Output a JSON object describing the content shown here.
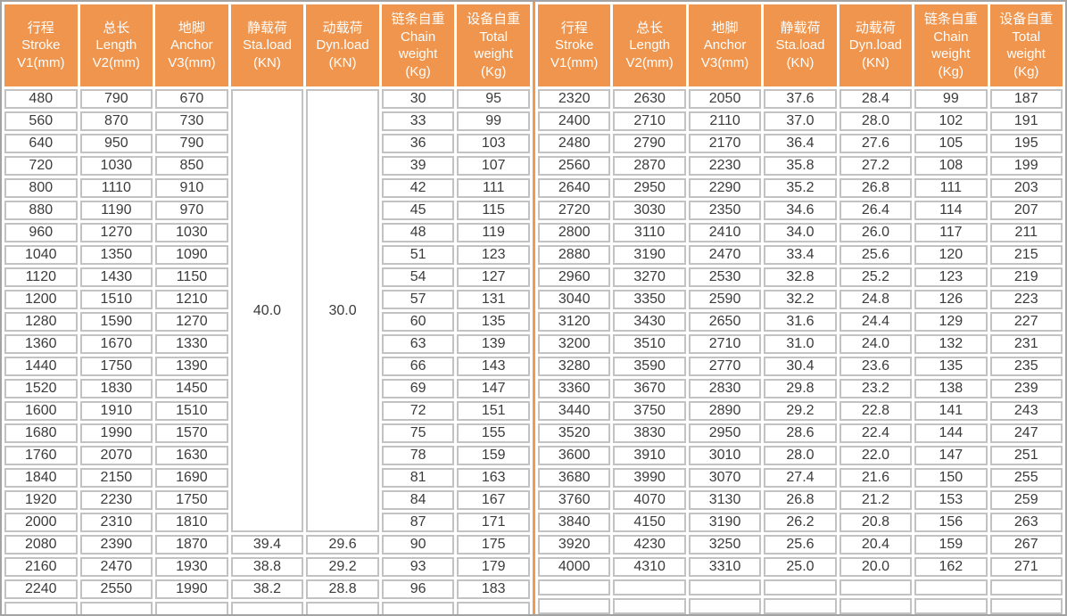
{
  "colors": {
    "header_bg": "#EF954D",
    "divider": "#EF9A4C",
    "cell_border": "#C2C2C2",
    "outer_border": "#A3A3A3",
    "data_text": "#3B3B3B",
    "header_text": "#FFFFFF"
  },
  "header_columns": [
    {
      "lines": [
        "行程",
        "Stroke",
        "V1(mm)"
      ]
    },
    {
      "lines": [
        "总长",
        "Length",
        "V2(mm)"
      ]
    },
    {
      "lines": [
        "地脚",
        "Anchor",
        "V3(mm)"
      ]
    },
    {
      "lines": [
        "静载荷",
        "Sta.load",
        "(KN)"
      ]
    },
    {
      "lines": [
        "动载荷",
        "Dyn.load",
        "(KN)"
      ]
    },
    {
      "lines": [
        "链条自重",
        "Chain",
        "weight",
        "(Kg)"
      ]
    },
    {
      "lines": [
        "设备自重",
        "Total",
        "weight",
        "(Kg)"
      ]
    }
  ],
  "left_table": {
    "merged": {
      "columns": [
        3,
        4
      ],
      "values": [
        "40.0",
        "30.0"
      ],
      "span": 20
    },
    "rows": [
      [
        "480",
        "790",
        "670",
        null,
        null,
        "30",
        "95"
      ],
      [
        "560",
        "870",
        "730",
        null,
        null,
        "33",
        "99"
      ],
      [
        "640",
        "950",
        "790",
        null,
        null,
        "36",
        "103"
      ],
      [
        "720",
        "1030",
        "850",
        null,
        null,
        "39",
        "107"
      ],
      [
        "800",
        "1110",
        "910",
        null,
        null,
        "42",
        "111"
      ],
      [
        "880",
        "1190",
        "970",
        null,
        null,
        "45",
        "115"
      ],
      [
        "960",
        "1270",
        "1030",
        null,
        null,
        "48",
        "119"
      ],
      [
        "1040",
        "1350",
        "1090",
        null,
        null,
        "51",
        "123"
      ],
      [
        "1120",
        "1430",
        "1150",
        null,
        null,
        "54",
        "127"
      ],
      [
        "1200",
        "1510",
        "1210",
        null,
        null,
        "57",
        "131"
      ],
      [
        "1280",
        "1590",
        "1270",
        null,
        null,
        "60",
        "135"
      ],
      [
        "1360",
        "1670",
        "1330",
        null,
        null,
        "63",
        "139"
      ],
      [
        "1440",
        "1750",
        "1390",
        null,
        null,
        "66",
        "143"
      ],
      [
        "1520",
        "1830",
        "1450",
        null,
        null,
        "69",
        "147"
      ],
      [
        "1600",
        "1910",
        "1510",
        null,
        null,
        "72",
        "151"
      ],
      [
        "1680",
        "1990",
        "1570",
        null,
        null,
        "75",
        "155"
      ],
      [
        "1760",
        "2070",
        "1630",
        null,
        null,
        "78",
        "159"
      ],
      [
        "1840",
        "2150",
        "1690",
        null,
        null,
        "81",
        "163"
      ],
      [
        "1920",
        "2230",
        "1750",
        null,
        null,
        "84",
        "167"
      ],
      [
        "2000",
        "2310",
        "1810",
        null,
        null,
        "87",
        "171"
      ],
      [
        "2080",
        "2390",
        "1870",
        "39.4",
        "29.6",
        "90",
        "175"
      ],
      [
        "2160",
        "2470",
        "1930",
        "38.8",
        "29.2",
        "93",
        "179"
      ],
      [
        "2240",
        "2550",
        "1990",
        "38.2",
        "28.8",
        "96",
        "183"
      ],
      [
        "",
        "",
        "",
        "",
        "",
        "",
        ""
      ]
    ]
  },
  "right_table": {
    "rows": [
      [
        "2320",
        "2630",
        "2050",
        "37.6",
        "28.4",
        "99",
        "187"
      ],
      [
        "2400",
        "2710",
        "2110",
        "37.0",
        "28.0",
        "102",
        "191"
      ],
      [
        "2480",
        "2790",
        "2170",
        "36.4",
        "27.6",
        "105",
        "195"
      ],
      [
        "2560",
        "2870",
        "2230",
        "35.8",
        "27.2",
        "108",
        "199"
      ],
      [
        "2640",
        "2950",
        "2290",
        "35.2",
        "26.8",
        "111",
        "203"
      ],
      [
        "2720",
        "3030",
        "2350",
        "34.6",
        "26.4",
        "114",
        "207"
      ],
      [
        "2800",
        "3110",
        "2410",
        "34.0",
        "26.0",
        "117",
        "211"
      ],
      [
        "2880",
        "3190",
        "2470",
        "33.4",
        "25.6",
        "120",
        "215"
      ],
      [
        "2960",
        "3270",
        "2530",
        "32.8",
        "25.2",
        "123",
        "219"
      ],
      [
        "3040",
        "3350",
        "2590",
        "32.2",
        "24.8",
        "126",
        "223"
      ],
      [
        "3120",
        "3430",
        "2650",
        "31.6",
        "24.4",
        "129",
        "227"
      ],
      [
        "3200",
        "3510",
        "2710",
        "31.0",
        "24.0",
        "132",
        "231"
      ],
      [
        "3280",
        "3590",
        "2770",
        "30.4",
        "23.6",
        "135",
        "235"
      ],
      [
        "3360",
        "3670",
        "2830",
        "29.8",
        "23.2",
        "138",
        "239"
      ],
      [
        "3440",
        "3750",
        "2890",
        "29.2",
        "22.8",
        "141",
        "243"
      ],
      [
        "3520",
        "3830",
        "2950",
        "28.6",
        "22.4",
        "144",
        "247"
      ],
      [
        "3600",
        "3910",
        "3010",
        "28.0",
        "22.0",
        "147",
        "251"
      ],
      [
        "3680",
        "3990",
        "3070",
        "27.4",
        "21.6",
        "150",
        "255"
      ],
      [
        "3760",
        "4070",
        "3130",
        "26.8",
        "21.2",
        "153",
        "259"
      ],
      [
        "3840",
        "4150",
        "3190",
        "26.2",
        "20.8",
        "156",
        "263"
      ],
      [
        "3920",
        "4230",
        "3250",
        "25.6",
        "20.4",
        "159",
        "267"
      ],
      [
        "4000",
        "4310",
        "3310",
        "25.0",
        "20.0",
        "162",
        "271"
      ],
      [
        "",
        "",
        "",
        "",
        "",
        "",
        ""
      ],
      [
        "",
        "",
        "",
        "",
        "",
        "",
        ""
      ]
    ]
  }
}
